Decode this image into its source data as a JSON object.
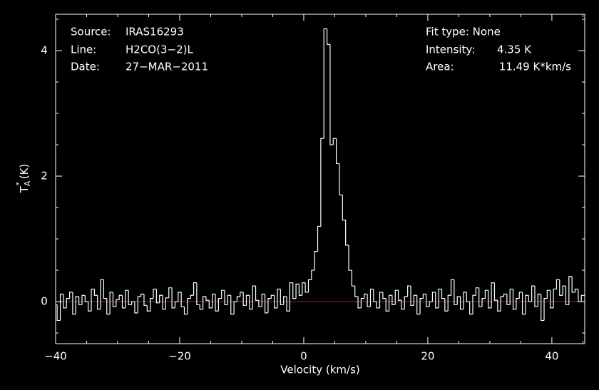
{
  "chart_data": {
    "type": "step",
    "xlabel": "Velocity (km/s)",
    "ylabel": {
      "main": "T",
      "sub": "A",
      "sup": "*",
      "unit": "(K)"
    },
    "annotations": {
      "left": [
        {
          "label": "Source:",
          "value": "IRAS16293"
        },
        {
          "label": "Line:",
          "value": "H2CO(3−2)L"
        },
        {
          "label": "Date:",
          "value": "27−MAR−2011"
        }
      ],
      "right": [
        {
          "label": "Fit type: None"
        },
        {
          "label": "Intensity:",
          "value": "4.35 K"
        },
        {
          "label": "Area:",
          "value": "11.49 K*km/s"
        }
      ]
    },
    "xlim": [
      -40,
      45.3
    ],
    "ylim": [
      -0.67,
      4.58
    ],
    "xticks": [
      {
        "value": -40,
        "label": "−40"
      },
      {
        "value": -20,
        "label": "−20"
      },
      0,
      20,
      40
    ],
    "yticks": [
      0,
      2,
      4
    ],
    "xminorticks": [
      -35,
      -30,
      -25,
      -15,
      -10,
      -5,
      5,
      10,
      15,
      25,
      30,
      35,
      45
    ],
    "yminorticks": [
      -0.5,
      0.5,
      1,
      1.5,
      2.5,
      3,
      3.5,
      4.5
    ],
    "baseline": 0,
    "baseline_color": "#d01010",
    "color": "#ffffff",
    "x": [
      -40,
      -39.5,
      -39,
      -38.5,
      -38,
      -37.5,
      -37,
      -36.5,
      -36,
      -35.5,
      -35,
      -34.5,
      -34,
      -33.5,
      -33,
      -32.5,
      -32,
      -31.5,
      -31,
      -30.5,
      -30,
      -29.5,
      -29,
      -28.5,
      -28,
      -27.5,
      -27,
      -26.5,
      -26,
      -25.5,
      -25,
      -24.5,
      -24,
      -23.5,
      -23,
      -22.5,
      -22,
      -21.5,
      -21,
      -20.5,
      -20,
      -19.5,
      -19,
      -18.5,
      -18,
      -17.5,
      -17,
      -16.5,
      -16,
      -15.5,
      -15,
      -14.5,
      -14,
      -13.5,
      -13,
      -12.5,
      -12,
      -11.5,
      -11,
      -10.5,
      -10,
      -9.5,
      -9,
      -8.5,
      -8,
      -7.5,
      -7,
      -6.5,
      -6,
      -5.5,
      -5,
      -4.5,
      -4,
      -3.5,
      -3,
      -2.5,
      -2,
      -1.5,
      -1,
      -0.5,
      0,
      0.5,
      1,
      1.5,
      2,
      2.5,
      3,
      3.5,
      4,
      4.5,
      5,
      5.5,
      6,
      6.5,
      7,
      7.5,
      8,
      8.5,
      9,
      9.5,
      10,
      10.5,
      11,
      11.5,
      12,
      12.5,
      13,
      13.5,
      14,
      14.5,
      15,
      15.5,
      16,
      16.5,
      17,
      17.5,
      18,
      18.5,
      19,
      19.5,
      20,
      20.5,
      21,
      21.5,
      22,
      22.5,
      23,
      23.5,
      24,
      24.5,
      25,
      25.5,
      26,
      26.5,
      27,
      27.5,
      28,
      28.5,
      29,
      29.5,
      30,
      30.5,
      31,
      31.5,
      32,
      32.5,
      33,
      33.5,
      34,
      34.5,
      35,
      35.5,
      36,
      36.5,
      37,
      37.5,
      38,
      38.5,
      39,
      39.5,
      40,
      40.5,
      41,
      41.5,
      42,
      42.5,
      43,
      43.5,
      44,
      44.5,
      45
    ],
    "values": [
      -0.05,
      -0.3,
      0.12,
      -0.1,
      0.05,
      0.15,
      -0.2,
      0.08,
      -0.05,
      0.1,
      0.0,
      -0.15,
      0.2,
      0.1,
      -0.12,
      0.35,
      0.05,
      -0.2,
      0.15,
      -0.08,
      0.03,
      0.1,
      -0.1,
      0.18,
      -0.05,
      0.0,
      -0.18,
      0.08,
      0.12,
      -0.06,
      -0.15,
      0.05,
      0.2,
      -0.02,
      0.1,
      -0.12,
      0.06,
      0.22,
      -0.1,
      0.0,
      0.15,
      -0.08,
      -0.2,
      0.05,
      0.1,
      0.3,
      -0.05,
      -0.12,
      0.08,
      0.02,
      -0.1,
      0.12,
      -0.15,
      0.05,
      0.18,
      -0.05,
      0.1,
      -0.2,
      0.0,
      0.08,
      0.15,
      -0.06,
      0.1,
      -0.12,
      0.25,
      0.02,
      -0.08,
      0.12,
      -0.18,
      0.05,
      0.1,
      -0.1,
      0.2,
      -0.05,
      0.08,
      -0.15,
      0.3,
      0.05,
      0.28,
      0.1,
      0.3,
      0.15,
      0.35,
      0.5,
      0.8,
      1.2,
      2.6,
      4.35,
      4.1,
      2.5,
      2.6,
      2.2,
      1.7,
      1.3,
      0.9,
      0.5,
      0.25,
      0.08,
      -0.1,
      0.05,
      0.12,
      -0.08,
      0.2,
      0.0,
      -0.1,
      0.15,
      0.05,
      -0.15,
      0.1,
      -0.05,
      0.18,
      0.02,
      -0.12,
      0.08,
      0.25,
      -0.06,
      0.1,
      -0.2,
      0.05,
      0.12,
      -0.08,
      0.0,
      0.15,
      -0.1,
      0.2,
      0.05,
      -0.15,
      0.1,
      0.35,
      -0.05,
      0.08,
      -0.12,
      0.15,
      0.0,
      -0.2,
      0.1,
      0.22,
      -0.08,
      0.05,
      0.18,
      -0.1,
      0.3,
      0.02,
      -0.15,
      0.08,
      0.12,
      -0.05,
      0.2,
      -0.12,
      0.05,
      0.15,
      -0.2,
      0.1,
      0.0,
      0.25,
      -0.08,
      0.12,
      -0.3,
      0.05,
      0.18,
      -0.1,
      0.2,
      0.35,
      0.1,
      0.25,
      -0.05,
      0.4,
      0.15,
      0.2,
      0.0,
      0.1
    ]
  }
}
